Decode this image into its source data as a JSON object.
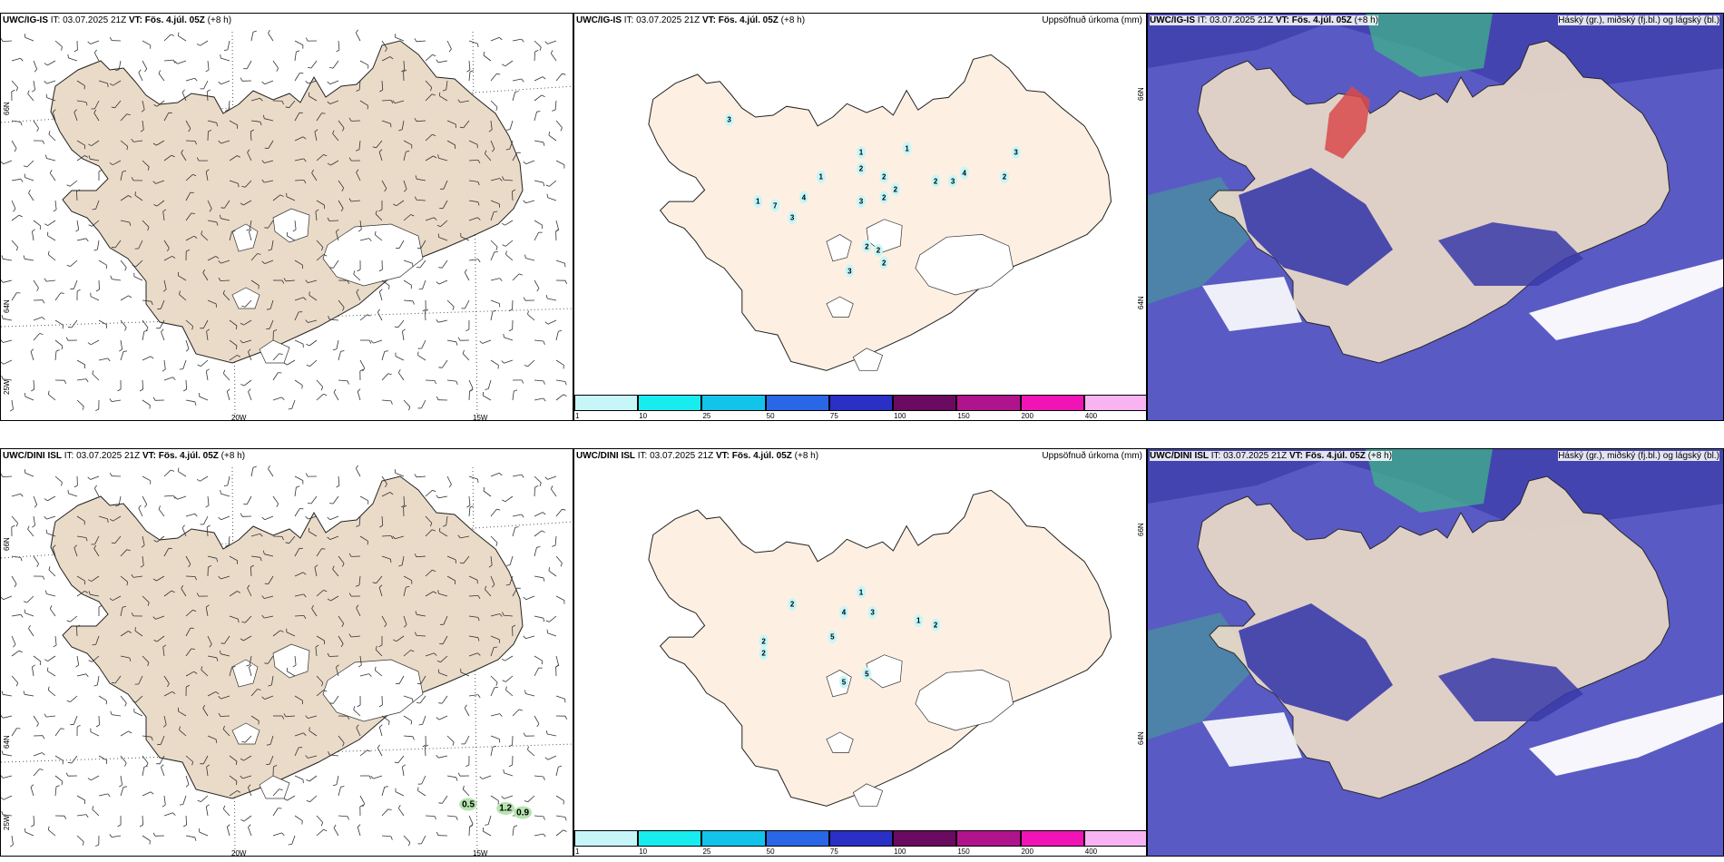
{
  "colors": {
    "land_wind": "#eadbc8",
    "land_precip": "#fdf0e3",
    "ice": "#ffffff",
    "ocean_cloud": "#5a5ac4",
    "cloud_dark": "#3a3aa8",
    "cloud_green": "#3fb38a",
    "cloud_red": "#d84a4a",
    "sea_white": "#ffffff"
  },
  "rows": [
    {
      "model_label": "UWC/IG-IS",
      "panels": {
        "wind": {
          "it_label": "IT:",
          "it_value": "03.07.2025 21Z",
          "vt_label": "VT:",
          "vt_value": "Fös. 4.júl. 05Z",
          "lead": "(+8 h)",
          "lon_labels": [
            "20W",
            "15W"
          ],
          "lat_labels": [
            "66N",
            "64N",
            "25W"
          ],
          "gust_values": []
        },
        "precip": {
          "it_label": "IT:",
          "it_value": "03.07.2025 21Z",
          "vt_label": "VT:",
          "vt_value": "Fös. 4.júl. 05Z",
          "lead": "(+8 h)",
          "field_title": "Uppsöfnuð úrkoma (mm)",
          "lat_labels": [
            "66N",
            "64N"
          ],
          "values": [
            {
              "v": "3",
              "fx": 0.27,
              "fy": 0.26
            },
            {
              "v": "1",
              "fx": 0.5,
              "fy": 0.34
            },
            {
              "v": "1",
              "fx": 0.58,
              "fy": 0.33
            },
            {
              "v": "2",
              "fx": 0.5,
              "fy": 0.38
            },
            {
              "v": "2",
              "fx": 0.54,
              "fy": 0.4
            },
            {
              "v": "2",
              "fx": 0.56,
              "fy": 0.43
            },
            {
              "v": "2",
              "fx": 0.54,
              "fy": 0.45
            },
            {
              "v": "1",
              "fx": 0.43,
              "fy": 0.4
            },
            {
              "v": "4",
              "fx": 0.4,
              "fy": 0.45
            },
            {
              "v": "7",
              "fx": 0.35,
              "fy": 0.47
            },
            {
              "v": "3",
              "fx": 0.38,
              "fy": 0.5
            },
            {
              "v": "1",
              "fx": 0.32,
              "fy": 0.46
            },
            {
              "v": "3",
              "fx": 0.5,
              "fy": 0.46
            },
            {
              "v": "2",
              "fx": 0.63,
              "fy": 0.41
            },
            {
              "v": "3",
              "fx": 0.66,
              "fy": 0.41
            },
            {
              "v": "4",
              "fx": 0.68,
              "fy": 0.39
            },
            {
              "v": "2",
              "fx": 0.75,
              "fy": 0.4
            },
            {
              "v": "3",
              "fx": 0.77,
              "fy": 0.34
            },
            {
              "v": "2",
              "fx": 0.51,
              "fy": 0.57
            },
            {
              "v": "2",
              "fx": 0.53,
              "fy": 0.58
            },
            {
              "v": "2",
              "fx": 0.54,
              "fy": 0.61
            },
            {
              "v": "3",
              "fx": 0.48,
              "fy": 0.63
            }
          ]
        },
        "cloud": {
          "it_label": "IT:",
          "it_value": "03.07.2025 21Z",
          "vt_label": "VT:",
          "vt_value": "Fös. 4.júl. 05Z",
          "lead": "(+8 h)",
          "field_title": "Háský (gr.), miðský (fj.bl.) og lágský (bl.)"
        }
      }
    },
    {
      "model_label": "UWC/DINI ISL",
      "panels": {
        "wind": {
          "it_label": "IT:",
          "it_value": "03.07.2025 21Z",
          "vt_label": "VT:",
          "vt_value": "Fös. 4.júl. 05Z",
          "lead": "(+8 h)",
          "lon_labels": [
            "20W",
            "15W"
          ],
          "lat_labels": [
            "66N",
            "64N",
            "25W"
          ],
          "gust_values": [
            {
              "v": "0.5",
              "fx": 0.815,
              "fy": 0.87
            },
            {
              "v": "1.2",
              "fx": 0.88,
              "fy": 0.88
            },
            {
              "v": "0.9",
              "fx": 0.91,
              "fy": 0.89
            }
          ]
        },
        "precip": {
          "it_label": "IT:",
          "it_value": "03.07.2025 21Z",
          "vt_label": "VT:",
          "vt_value": "Fös. 4.júl. 05Z",
          "lead": "(+8 h)",
          "field_title": "Uppsöfnuð úrkoma (mm)",
          "lat_labels": [
            "66N",
            "64N"
          ],
          "values": [
            {
              "v": "1",
              "fx": 0.5,
              "fy": 0.35
            },
            {
              "v": "2",
              "fx": 0.38,
              "fy": 0.38
            },
            {
              "v": "4",
              "fx": 0.47,
              "fy": 0.4
            },
            {
              "v": "3",
              "fx": 0.52,
              "fy": 0.4
            },
            {
              "v": "5",
              "fx": 0.45,
              "fy": 0.46
            },
            {
              "v": "1",
              "fx": 0.6,
              "fy": 0.42
            },
            {
              "v": "2",
              "fx": 0.63,
              "fy": 0.43
            },
            {
              "v": "2",
              "fx": 0.33,
              "fy": 0.47
            },
            {
              "v": "2",
              "fx": 0.33,
              "fy": 0.5
            },
            {
              "v": "5",
              "fx": 0.47,
              "fy": 0.57
            },
            {
              "v": "5",
              "fx": 0.51,
              "fy": 0.55
            }
          ]
        },
        "cloud": {
          "it_label": "IT:",
          "it_value": "03.07.2025 21Z",
          "vt_label": "VT:",
          "vt_value": "Fös. 4.júl. 05Z",
          "lead": "(+8 h)",
          "field_title": "Háský (gr.), miðský (fj.bl.) og lágský (bl.)"
        }
      }
    }
  ],
  "legend": {
    "ticks": [
      "1",
      "10",
      "25",
      "50",
      "75",
      "100",
      "150",
      "200",
      "400"
    ],
    "colors": [
      "#c7f6f8",
      "#19ecef",
      "#14c3ea",
      "#2a67e6",
      "#2a2fc6",
      "#6a0a60",
      "#b0148c",
      "#f014b6",
      "#f8b4f2"
    ]
  }
}
